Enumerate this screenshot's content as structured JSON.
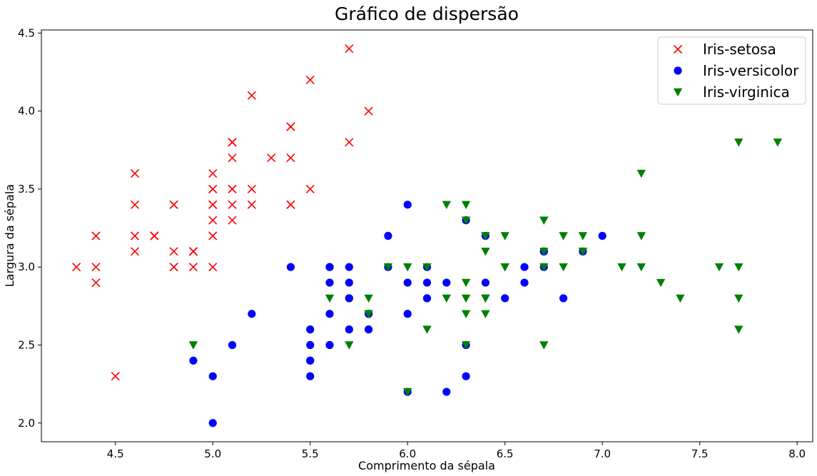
{
  "chart_data": {
    "type": "scatter",
    "title": "Gráfico de dispersão",
    "xlabel": "Comprimento da sépala",
    "ylabel": "Largura da sépala",
    "xlim": [
      4.12,
      8.08
    ],
    "ylim": [
      1.88,
      4.52
    ],
    "xticks": [
      "4.5",
      "5.0",
      "5.5",
      "6.0",
      "6.5",
      "7.0",
      "7.5",
      "8.0"
    ],
    "yticks": [
      "2.0",
      "2.5",
      "3.0",
      "3.5",
      "4.0",
      "4.5"
    ],
    "grid": false,
    "legend": "top-right",
    "series": [
      {
        "name": "Iris-setosa",
        "marker": "x",
        "color": "#ff0000",
        "points": [
          [
            5.1,
            3.5
          ],
          [
            4.9,
            3.0
          ],
          [
            4.7,
            3.2
          ],
          [
            4.6,
            3.1
          ],
          [
            5.0,
            3.6
          ],
          [
            5.4,
            3.9
          ],
          [
            4.6,
            3.4
          ],
          [
            5.0,
            3.4
          ],
          [
            4.4,
            2.9
          ],
          [
            4.9,
            3.1
          ],
          [
            5.4,
            3.7
          ],
          [
            4.8,
            3.4
          ],
          [
            4.8,
            3.0
          ],
          [
            4.3,
            3.0
          ],
          [
            5.8,
            4.0
          ],
          [
            5.7,
            4.4
          ],
          [
            5.4,
            3.9
          ],
          [
            5.1,
            3.5
          ],
          [
            5.7,
            3.8
          ],
          [
            5.1,
            3.8
          ],
          [
            5.4,
            3.4
          ],
          [
            5.1,
            3.7
          ],
          [
            4.6,
            3.6
          ],
          [
            5.1,
            3.3
          ],
          [
            4.8,
            3.4
          ],
          [
            5.0,
            3.0
          ],
          [
            5.0,
            3.4
          ],
          [
            5.2,
            3.5
          ],
          [
            5.2,
            3.4
          ],
          [
            4.7,
            3.2
          ],
          [
            4.8,
            3.1
          ],
          [
            5.4,
            3.4
          ],
          [
            5.2,
            4.1
          ],
          [
            5.5,
            4.2
          ],
          [
            4.9,
            3.1
          ],
          [
            5.0,
            3.2
          ],
          [
            5.5,
            3.5
          ],
          [
            4.9,
            3.1
          ],
          [
            4.4,
            3.0
          ],
          [
            5.1,
            3.4
          ],
          [
            5.0,
            3.5
          ],
          [
            4.5,
            2.3
          ],
          [
            4.4,
            3.2
          ],
          [
            5.0,
            3.5
          ],
          [
            5.1,
            3.8
          ],
          [
            4.8,
            3.0
          ],
          [
            5.1,
            3.8
          ],
          [
            4.6,
            3.2
          ],
          [
            5.3,
            3.7
          ],
          [
            5.0,
            3.3
          ]
        ]
      },
      {
        "name": "Iris-versicolor",
        "marker": "o",
        "color": "#0000ff",
        "points": [
          [
            7.0,
            3.2
          ],
          [
            6.4,
            3.2
          ],
          [
            6.9,
            3.1
          ],
          [
            5.5,
            2.3
          ],
          [
            6.5,
            2.8
          ],
          [
            5.7,
            2.8
          ],
          [
            6.3,
            3.3
          ],
          [
            4.9,
            2.4
          ],
          [
            6.6,
            2.9
          ],
          [
            5.2,
            2.7
          ],
          [
            5.0,
            2.0
          ],
          [
            5.9,
            3.0
          ],
          [
            6.0,
            2.2
          ],
          [
            6.1,
            2.9
          ],
          [
            5.6,
            2.9
          ],
          [
            6.7,
            3.1
          ],
          [
            5.6,
            3.0
          ],
          [
            5.8,
            2.7
          ],
          [
            6.2,
            2.2
          ],
          [
            5.6,
            2.5
          ],
          [
            5.9,
            3.2
          ],
          [
            6.1,
            2.8
          ],
          [
            6.3,
            2.5
          ],
          [
            6.1,
            2.8
          ],
          [
            6.4,
            2.9
          ],
          [
            6.6,
            3.0
          ],
          [
            6.8,
            2.8
          ],
          [
            6.7,
            3.0
          ],
          [
            6.0,
            2.9
          ],
          [
            5.7,
            2.6
          ],
          [
            5.5,
            2.4
          ],
          [
            5.5,
            2.4
          ],
          [
            5.8,
            2.7
          ],
          [
            6.0,
            2.7
          ],
          [
            5.4,
            3.0
          ],
          [
            6.0,
            3.4
          ],
          [
            6.7,
            3.1
          ],
          [
            6.3,
            2.3
          ],
          [
            5.6,
            3.0
          ],
          [
            5.5,
            2.5
          ],
          [
            5.5,
            2.6
          ],
          [
            6.1,
            3.0
          ],
          [
            5.8,
            2.6
          ],
          [
            5.0,
            2.3
          ],
          [
            5.6,
            2.7
          ],
          [
            5.7,
            3.0
          ],
          [
            5.7,
            2.9
          ],
          [
            6.2,
            2.9
          ],
          [
            5.1,
            2.5
          ],
          [
            5.7,
            2.8
          ]
        ]
      },
      {
        "name": "Iris-virginica",
        "marker": "v",
        "color": "#008000",
        "points": [
          [
            6.3,
            3.3
          ],
          [
            5.8,
            2.7
          ],
          [
            7.1,
            3.0
          ],
          [
            6.3,
            2.9
          ],
          [
            6.5,
            3.0
          ],
          [
            7.6,
            3.0
          ],
          [
            4.9,
            2.5
          ],
          [
            7.3,
            2.9
          ],
          [
            6.7,
            2.5
          ],
          [
            7.2,
            3.6
          ],
          [
            6.5,
            3.2
          ],
          [
            6.4,
            2.7
          ],
          [
            6.8,
            3.0
          ],
          [
            5.7,
            2.5
          ],
          [
            5.8,
            2.8
          ],
          [
            6.4,
            3.2
          ],
          [
            6.5,
            3.0
          ],
          [
            7.7,
            3.8
          ],
          [
            7.7,
            2.6
          ],
          [
            6.0,
            2.2
          ],
          [
            6.9,
            3.2
          ],
          [
            5.6,
            2.8
          ],
          [
            7.7,
            2.8
          ],
          [
            6.3,
            2.7
          ],
          [
            6.7,
            3.3
          ],
          [
            7.2,
            3.2
          ],
          [
            6.2,
            2.8
          ],
          [
            6.1,
            3.0
          ],
          [
            6.4,
            2.8
          ],
          [
            7.2,
            3.0
          ],
          [
            7.4,
            2.8
          ],
          [
            7.9,
            3.8
          ],
          [
            6.4,
            2.8
          ],
          [
            6.3,
            2.8
          ],
          [
            6.1,
            2.6
          ],
          [
            7.7,
            3.0
          ],
          [
            6.3,
            3.4
          ],
          [
            6.4,
            3.1
          ],
          [
            6.0,
            3.0
          ],
          [
            6.9,
            3.1
          ],
          [
            6.7,
            3.1
          ],
          [
            6.9,
            3.1
          ],
          [
            5.8,
            2.7
          ],
          [
            6.8,
            3.2
          ],
          [
            6.7,
            3.3
          ],
          [
            6.7,
            3.0
          ],
          [
            6.3,
            2.5
          ],
          [
            6.5,
            3.0
          ],
          [
            6.2,
            3.4
          ],
          [
            5.9,
            3.0
          ]
        ]
      }
    ]
  }
}
